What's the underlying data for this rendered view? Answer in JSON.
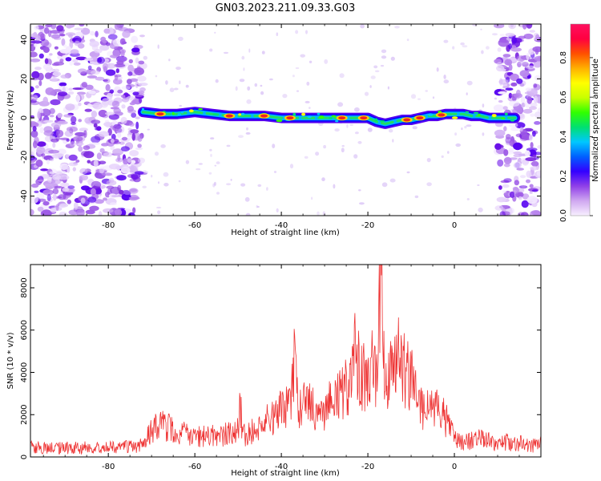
{
  "figure": {
    "title": "GN03.2023.211.09.33.G03"
  },
  "colors": {
    "snr_line": "#ee3333",
    "track_core": "#ee2222",
    "noise_scatter": "#8a2be2",
    "frame": "#000000"
  },
  "chart_data": [
    {
      "type": "heatmap",
      "xlabel": "Height of straight line (km)",
      "ylabel": "Frequency (Hz)",
      "xlim": [
        -98,
        20
      ],
      "ylim": [
        -50,
        48
      ],
      "xticks": [
        -80,
        -60,
        -40,
        -20,
        0
      ],
      "yticks": [
        40,
        20,
        0,
        -20,
        -40
      ],
      "grid": false,
      "colorbar": {
        "label": "Normalized spectral amplitude",
        "range": [
          0.0,
          0.97
        ],
        "ticks": [
          "0.0",
          "0.2",
          "0.4",
          "0.6",
          "0.8"
        ],
        "colormap": [
          "#f8f0ff",
          "#d0a8f0",
          "#9040e8",
          "#3300ff",
          "#0060ff",
          "#00c8ff",
          "#00e070",
          "#30ff00",
          "#c8ff00",
          "#ffff00",
          "#ffb000",
          "#ff5000",
          "#ff0040",
          "#ff1060"
        ]
      },
      "track": {
        "description": "frequency of dominant signal vs height",
        "x": [
          -72,
          -68,
          -64,
          -60,
          -56,
          -52,
          -48,
          -44,
          -40,
          -36,
          -32,
          -28,
          -24,
          -20,
          -18,
          -16,
          -14,
          -12,
          -10,
          -8,
          -6,
          -4,
          -2,
          0,
          2,
          4,
          6,
          8,
          10,
          12,
          14
        ],
        "y": [
          3,
          2,
          2,
          3,
          2,
          1,
          1,
          1,
          0,
          0,
          0,
          0,
          0,
          0,
          -2,
          -3,
          -2,
          -1,
          -1,
          0,
          1,
          1,
          2,
          2,
          2,
          1,
          1,
          0,
          0,
          0,
          0
        ],
        "peak_x": [
          -68,
          -52,
          -44,
          -38,
          -26,
          -21,
          -11,
          -8,
          -3
        ]
      },
      "noise_regions": {
        "dense_left_x": [
          -98,
          -72
        ],
        "dense_right_x": [
          10,
          20
        ],
        "sparse_mid_x": [
          -72,
          10
        ]
      }
    },
    {
      "type": "line",
      "xlabel": "Height of straight line (km)",
      "ylabel": "SNR (10 * v/v)",
      "xlim": [
        -98,
        20
      ],
      "ylim": [
        0,
        9100
      ],
      "xticks": [
        -80,
        -60,
        -40,
        -20,
        0
      ],
      "yticks": [
        0,
        2000,
        4000,
        6000,
        8000
      ],
      "grid": false,
      "series": [
        {
          "x": [
            -98,
            -94,
            -90,
            -86,
            -82,
            -78,
            -74,
            -72,
            -70,
            -68,
            -66,
            -64,
            -62,
            -60,
            -58,
            -56,
            -54,
            -52,
            -50,
            -49.5,
            -49,
            -48,
            -46,
            -44,
            -42,
            -40,
            -38,
            -37,
            -36,
            -34,
            -32,
            -30,
            -28,
            -26,
            -24,
            -23,
            -22,
            -21,
            -20,
            -19,
            -18,
            -17.5,
            -17,
            -16.5,
            -16,
            -15,
            -14,
            -13,
            -12,
            -11,
            -10,
            -9,
            -8,
            -6,
            -5,
            -4,
            -2,
            0,
            2,
            4,
            6,
            8,
            10,
            12,
            14,
            16,
            18,
            20
          ],
          "y": [
            450,
            420,
            430,
            440,
            430,
            450,
            480,
            600,
            1200,
            1600,
            1400,
            1100,
            1200,
            900,
            1000,
            1050,
            950,
            1150,
            1300,
            2800,
            1100,
            1050,
            1300,
            1600,
            1800,
            2200,
            2600,
            4300,
            2500,
            2400,
            2300,
            2100,
            2700,
            3200,
            3300,
            5000,
            4100,
            3800,
            4200,
            4600,
            4000,
            5600,
            8600,
            5000,
            3000,
            3800,
            4500,
            4700,
            4300,
            3800,
            3900,
            3300,
            2400,
            2300,
            2700,
            2200,
            1800,
            900,
            700,
            800,
            900,
            750,
            650,
            700,
            600,
            650,
            550,
            600
          ]
        }
      ]
    }
  ]
}
